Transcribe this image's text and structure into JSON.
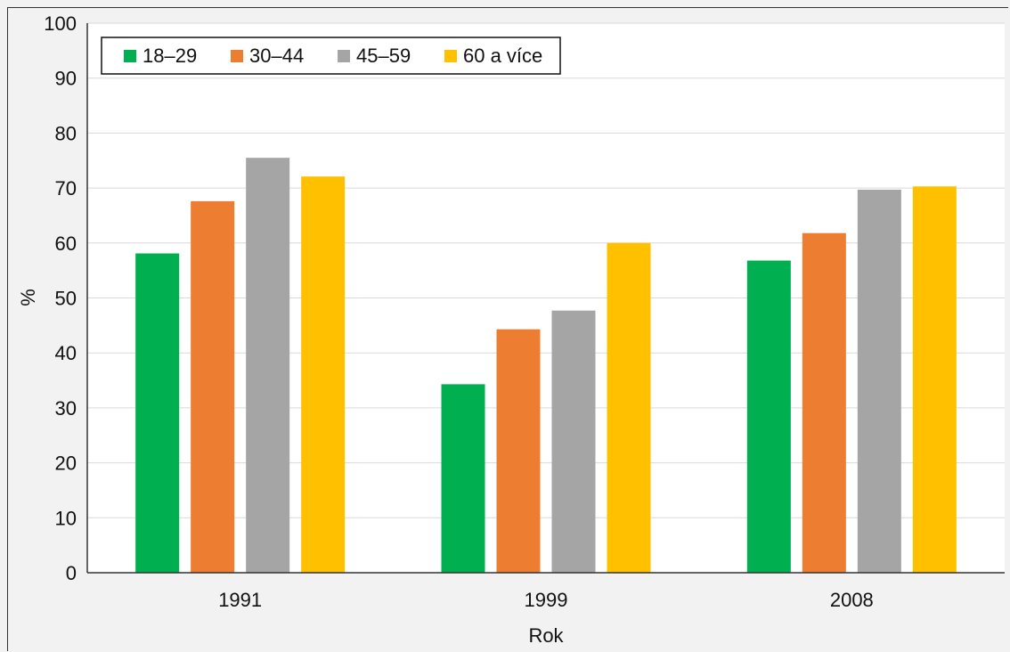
{
  "chart_data": {
    "type": "bar",
    "title": "",
    "xlabel": "Rok",
    "ylabel": "%",
    "ylim": [
      0,
      100
    ],
    "yticks": [
      0,
      10,
      20,
      30,
      40,
      50,
      60,
      70,
      80,
      90,
      100
    ],
    "categories": [
      "1991",
      "1999",
      "2008"
    ],
    "series": [
      {
        "name": "18–29",
        "color": "#00b050",
        "values": [
          58.1,
          34.3,
          56.8
        ]
      },
      {
        "name": "30–44",
        "color": "#ed7d31",
        "values": [
          67.6,
          44.3,
          61.8
        ]
      },
      {
        "name": "45–59",
        "color": "#a5a5a5",
        "values": [
          75.5,
          47.7,
          69.7
        ]
      },
      {
        "name": "60 a více",
        "color": "#ffc000",
        "values": [
          72.1,
          60.0,
          70.3
        ]
      }
    ],
    "grid": true,
    "legend": "top-left"
  }
}
